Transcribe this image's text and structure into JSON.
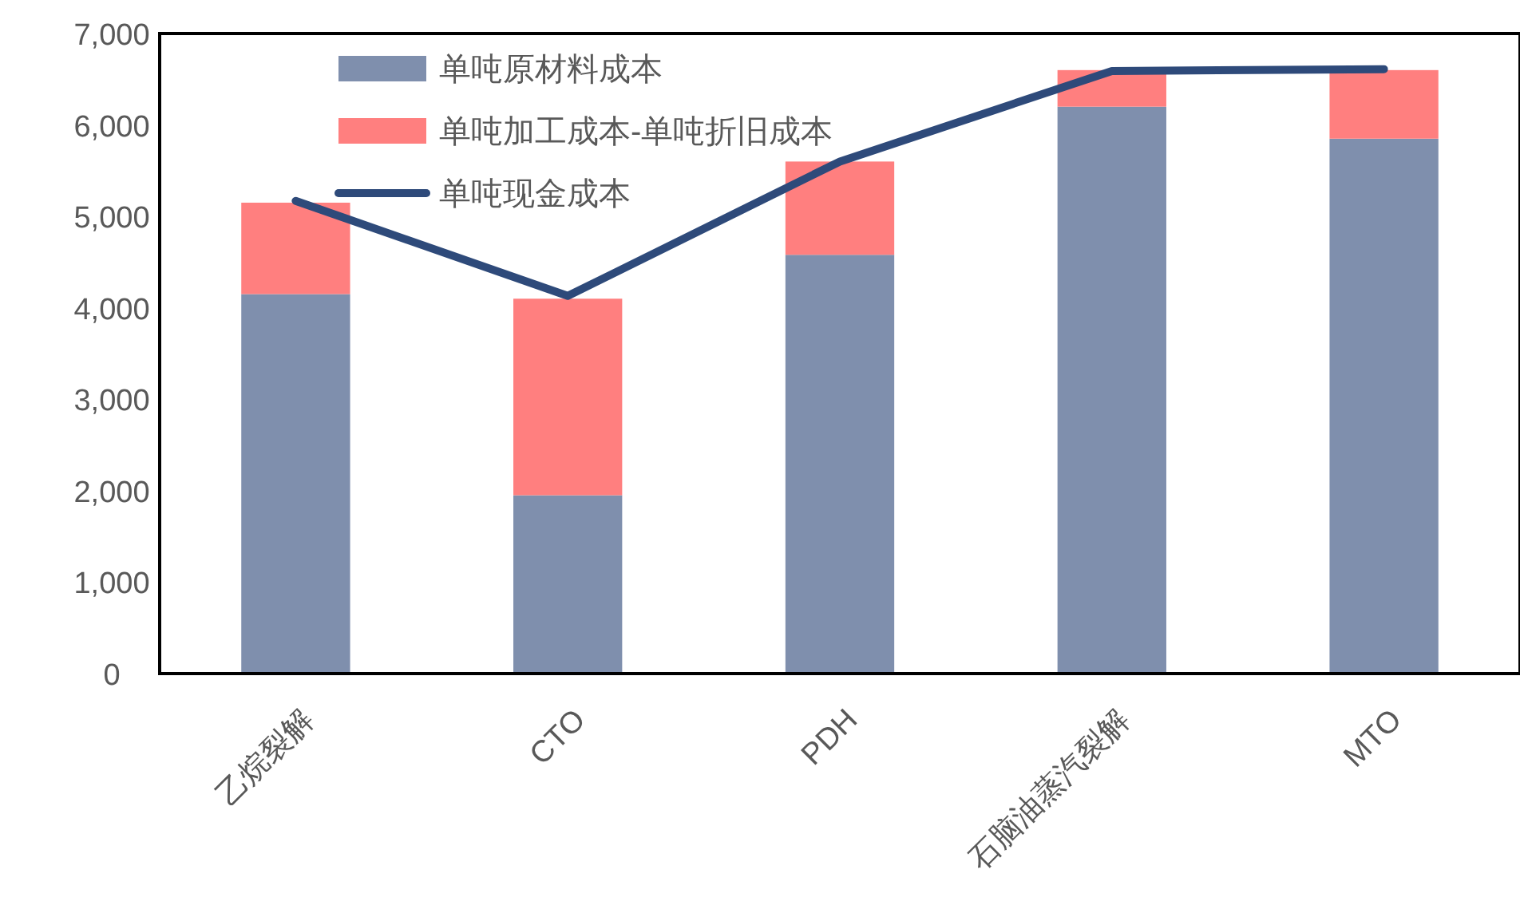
{
  "chart_data": {
    "type": "bar",
    "stacked": true,
    "categories": [
      "乙烷裂解",
      "CTO",
      "PDH",
      "石脑油蒸汽裂解",
      "MTO"
    ],
    "series": [
      {
        "name": "单吨原材料成本",
        "color": "#7f8fad",
        "values": [
          4150,
          1950,
          4580,
          6200,
          5850
        ]
      },
      {
        "name": "单吨加工成本-单吨折旧成本",
        "color": "#ff7f7f",
        "values": [
          1000,
          2150,
          1020,
          400,
          750
        ]
      },
      {
        "name": "单吨现金成本",
        "type": "line",
        "color": "#2e4a7a",
        "values": [
          5170,
          4130,
          5600,
          6590,
          6610
        ]
      }
    ],
    "ylim": [
      0,
      7000
    ],
    "yticks": [
      {
        "value": 0,
        "label": "0"
      },
      {
        "value": 1000,
        "label": "1,000"
      },
      {
        "value": 2000,
        "label": "2,000"
      },
      {
        "value": 3000,
        "label": "3,000"
      },
      {
        "value": 4000,
        "label": "4,000"
      },
      {
        "value": 5000,
        "label": "5,000"
      },
      {
        "value": 6000,
        "label": "6,000"
      },
      {
        "value": 7000,
        "label": "7,000"
      }
    ],
    "legend": "top left",
    "grid": false
  }
}
